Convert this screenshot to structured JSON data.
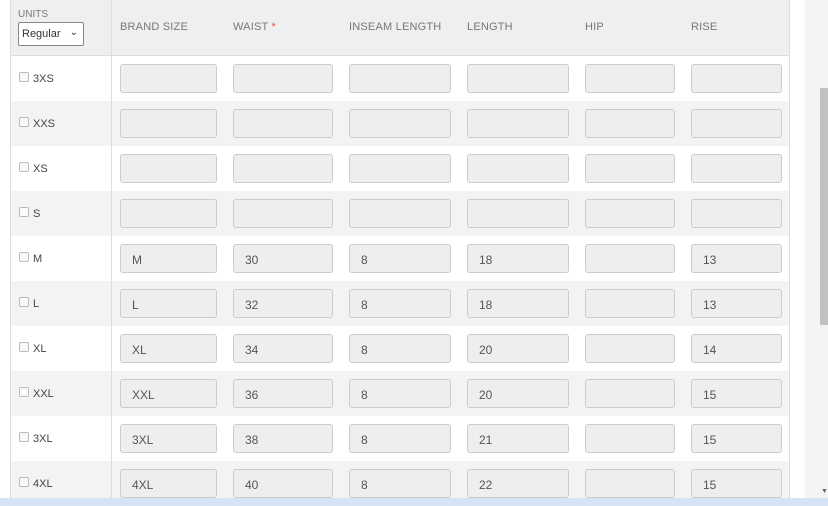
{
  "units": {
    "label": "UNITS",
    "selected": "Regular"
  },
  "columns": [
    "BRAND SIZE",
    "WAIST",
    "INSEAM LENGTH",
    "LENGTH",
    "HIP",
    "RISE"
  ],
  "required_marker": "*",
  "rows": [
    {
      "size": "3XS",
      "values": [
        "",
        "",
        "",
        "",
        "",
        ""
      ]
    },
    {
      "size": "XXS",
      "values": [
        "",
        "",
        "",
        "",
        "",
        ""
      ]
    },
    {
      "size": "XS",
      "values": [
        "",
        "",
        "",
        "",
        "",
        ""
      ]
    },
    {
      "size": "S",
      "values": [
        "",
        "",
        "",
        "",
        "",
        ""
      ]
    },
    {
      "size": "M",
      "values": [
        "M",
        "30",
        "8",
        "18",
        "",
        "13"
      ]
    },
    {
      "size": "L",
      "values": [
        "L",
        "32",
        "8",
        "18",
        "",
        "13"
      ]
    },
    {
      "size": "XL",
      "values": [
        "XL",
        "34",
        "8",
        "20",
        "",
        "14"
      ]
    },
    {
      "size": "XXL",
      "values": [
        "XXL",
        "36",
        "8",
        "20",
        "",
        "15"
      ]
    },
    {
      "size": "3XL",
      "values": [
        "3XL",
        "38",
        "8",
        "21",
        "",
        "15"
      ]
    },
    {
      "size": "4XL",
      "values": [
        "4XL",
        "40",
        "8",
        "22",
        "",
        "15"
      ]
    }
  ]
}
